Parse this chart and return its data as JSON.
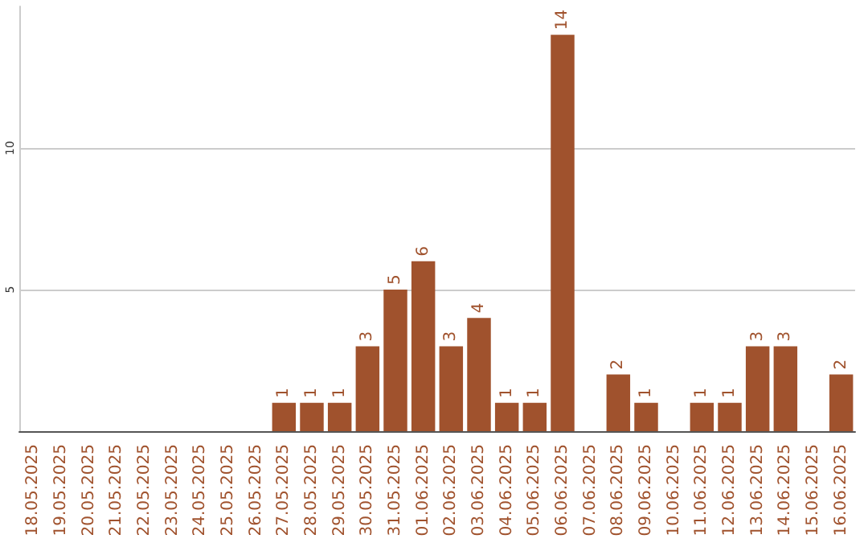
{
  "chart_data": {
    "type": "bar",
    "categories": [
      "18.05.2025",
      "19.05.2025",
      "20.05.2025",
      "21.05.2025",
      "22.05.2025",
      "23.05.2025",
      "24.05.2025",
      "25.05.2025",
      "26.05.2025",
      "27.05.2025",
      "28.05.2025",
      "29.05.2025",
      "30.05.2025",
      "31.05.2025",
      "01.06.2025",
      "02.06.2025",
      "03.06.2025",
      "04.06.2025",
      "05.06.2025",
      "06.06.2025",
      "07.06.2025",
      "08.06.2025",
      "09.06.2025",
      "10.06.2025",
      "11.06.2025",
      "12.06.2025",
      "13.06.2025",
      "14.06.2025",
      "15.06.2025",
      "16.06.2025"
    ],
    "values": [
      0,
      0,
      0,
      0,
      0,
      0,
      0,
      0,
      0,
      1,
      1,
      1,
      3,
      5,
      6,
      3,
      4,
      1,
      1,
      14,
      0,
      2,
      1,
      0,
      1,
      1,
      3,
      3,
      0,
      2
    ],
    "value_labels": [
      null,
      null,
      null,
      null,
      null,
      null,
      null,
      null,
      null,
      "1",
      "1",
      "1",
      "3",
      "5",
      "6",
      "3",
      "4",
      "1",
      "1",
      "14",
      null,
      "2",
      "1",
      null,
      "1",
      "1",
      "3",
      "3",
      null,
      "2"
    ],
    "color": "#a0522d",
    "ylim": [
      0,
      15
    ],
    "yticks": [
      5,
      10
    ],
    "grid": "y"
  }
}
